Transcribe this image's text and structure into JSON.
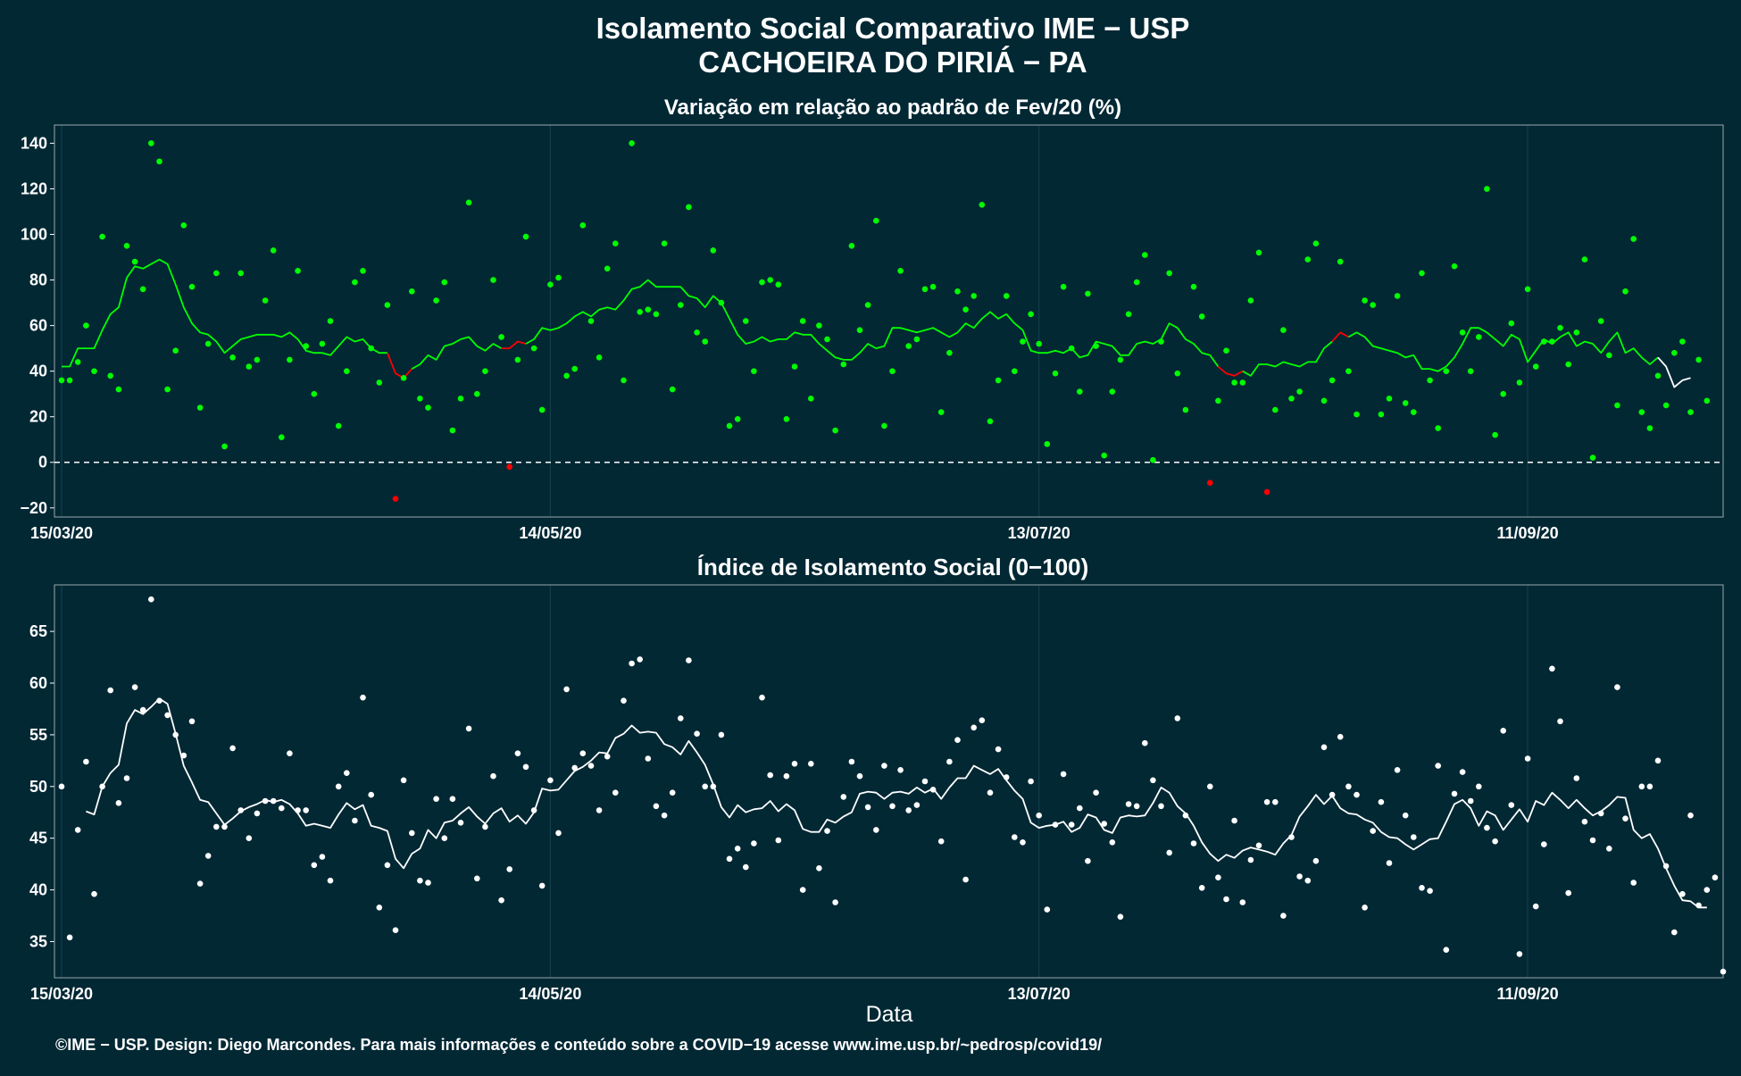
{
  "title_line1": "Isolamento Social Comparativo IME − USP",
  "title_line2": "CACHOEIRA DO PIRIÁ − PA",
  "xlabel": "Data",
  "credit": "©IME − USP. Design: Diego Marcondes. Para mais informações e conteúdo sobre a COVID−19 acesse www.ime.usp.br/~pedrosp/covid19/",
  "colors": {
    "background": "#022834",
    "positive": "#00ff00",
    "negative": "#ff0000",
    "index": "#ffffff",
    "grid": "#17424f"
  },
  "chart_data": [
    {
      "type": "scatter",
      "title": "Variação em relação ao padrão de Fev/20 (%)",
      "x_start": "15/03/20",
      "x_end": "05/10/20",
      "x_ticks": [
        "15/03/20",
        "14/05/20",
        "13/07/20",
        "11/09/20"
      ],
      "y_ticks": [
        -20,
        0,
        20,
        40,
        60,
        80,
        100,
        120,
        140
      ],
      "ylim": [
        -24,
        148
      ],
      "reference_line": 0,
      "points": [
        36,
        36,
        44,
        60,
        40,
        99,
        38,
        32,
        95,
        88,
        76,
        140,
        132,
        32,
        49,
        104,
        77,
        24,
        52,
        83,
        7,
        46,
        83,
        42,
        45,
        71,
        93,
        11,
        45,
        84,
        51,
        30,
        52,
        62,
        16,
        40,
        79,
        84,
        50,
        35,
        69,
        -16,
        37,
        75,
        28,
        24,
        71,
        79,
        14,
        28,
        114,
        30,
        40,
        80,
        55,
        -2,
        45,
        99,
        50,
        23,
        78,
        81,
        38,
        41,
        104,
        62,
        46,
        85,
        96,
        36,
        140,
        66,
        67,
        65,
        96,
        32,
        69,
        112,
        57,
        53,
        93,
        70,
        16,
        19,
        62,
        40,
        79,
        80,
        78,
        19,
        42,
        62,
        28,
        60,
        54,
        14,
        43,
        95,
        58,
        69,
        106,
        16,
        40,
        84,
        51,
        54,
        76,
        77,
        22,
        48,
        75,
        67,
        73,
        113,
        18,
        36,
        73,
        40,
        53,
        65,
        52,
        8,
        39,
        77,
        50,
        31,
        74,
        51,
        3,
        31,
        45,
        65,
        79,
        91,
        1,
        53,
        83,
        39,
        23,
        77,
        64,
        -9,
        27,
        49,
        35,
        35,
        71,
        92,
        -13,
        23,
        58,
        28,
        31,
        89,
        96,
        27,
        36,
        88,
        40,
        21,
        71,
        69,
        21,
        28,
        73,
        26,
        22,
        83,
        36,
        15,
        40,
        86,
        57,
        40,
        55,
        120,
        12,
        30,
        61,
        35,
        76,
        42,
        53,
        53,
        59,
        43,
        57,
        89,
        2,
        62,
        47,
        25,
        75,
        98,
        22,
        15,
        38,
        25,
        48,
        53,
        22,
        45,
        27
      ],
      "moving_avg": [
        42,
        42,
        50,
        50,
        50,
        58,
        65,
        68,
        81,
        86,
        85,
        87,
        89,
        87,
        78,
        68,
        61,
        57,
        56,
        53,
        48,
        51,
        54,
        55,
        56,
        56,
        56,
        55,
        57,
        54,
        49,
        48,
        48,
        47,
        51,
        55,
        53,
        54,
        50,
        48,
        48,
        39,
        37,
        41,
        43,
        47,
        45,
        51,
        52,
        54,
        55,
        51,
        49,
        52,
        50,
        50,
        53,
        52,
        54,
        59,
        58,
        59,
        61,
        64,
        66,
        64,
        67,
        68,
        67,
        71,
        76,
        77,
        80,
        77,
        77,
        77,
        77,
        73,
        72,
        68,
        73,
        70,
        63,
        56,
        52,
        53,
        55,
        53,
        54,
        54,
        57,
        56,
        56,
        52,
        49,
        46,
        45,
        45,
        48,
        52,
        50,
        51,
        59,
        59,
        58,
        57,
        58,
        59,
        57,
        55,
        57,
        61,
        59,
        63,
        66,
        63,
        65,
        61,
        58,
        49,
        48,
        48,
        49,
        48,
        50,
        46,
        47,
        53,
        52,
        51,
        47,
        47,
        52,
        53,
        52,
        54,
        61,
        59,
        54,
        52,
        48,
        47,
        42,
        39,
        38,
        40,
        38,
        43,
        43,
        42,
        44,
        43,
        42,
        44,
        44,
        50,
        53,
        57,
        55,
        57,
        55,
        51,
        50,
        49,
        48,
        46,
        47,
        41,
        41,
        40,
        42,
        46,
        52,
        59,
        59,
        57,
        54,
        51,
        56,
        54,
        44,
        49,
        54,
        52,
        55,
        57,
        51,
        53,
        52,
        48,
        53,
        57,
        48,
        50,
        46,
        43,
        46,
        42,
        33,
        36,
        37
      ],
      "moving_avg_color_runs": [
        [
          0,
          40,
          "#00ff00"
        ],
        [
          40,
          43,
          "#ff0000"
        ],
        [
          43,
          54,
          "#00ff00"
        ],
        [
          54,
          57,
          "#ff0000"
        ],
        [
          57,
          142,
          "#00ff00"
        ],
        [
          142,
          145,
          "#ff0000"
        ],
        [
          145,
          156,
          "#00ff00"
        ],
        [
          156,
          158,
          "#ff0000"
        ],
        [
          158,
          196,
          "#00ff00"
        ],
        [
          196,
          201,
          "#ffffff"
        ]
      ]
    },
    {
      "type": "scatter",
      "title": "Índice de Isolamento Social (0−100)",
      "x_start": "15/03/20",
      "x_end": "05/10/20",
      "x_ticks": [
        "15/03/20",
        "14/05/20",
        "13/07/20",
        "11/09/20"
      ],
      "y_ticks": [
        35,
        40,
        45,
        50,
        55,
        60,
        65
      ],
      "ylim": [
        31.5,
        69.5
      ],
      "points": [
        50,
        35.4,
        45.8,
        52.4,
        39.6,
        50,
        59.3,
        48.4,
        50.8,
        59.6,
        57.4,
        68.1,
        58.3,
        56.9,
        55,
        53,
        56.3,
        40.6,
        43.3,
        46.1,
        46.1,
        53.7,
        47.7,
        45,
        47.4,
        48.6,
        48.6,
        47.9,
        53.2,
        47.7,
        47.7,
        42.4,
        43.2,
        40.9,
        50,
        51.3,
        46.7,
        58.6,
        49.2,
        38.3,
        42.4,
        36.1,
        50.6,
        45.5,
        40.9,
        40.7,
        48.8,
        45,
        48.8,
        46.5,
        55.6,
        41.1,
        46.1,
        51,
        39,
        42,
        53.2,
        51.9,
        47.7,
        40.4,
        50.6,
        45.5,
        59.4,
        51.8,
        53.2,
        52,
        47.7,
        52.9,
        49.4,
        58.3,
        61.9,
        62.3,
        52.7,
        48.1,
        47.2,
        49.4,
        56.6,
        62.2,
        55.1,
        50,
        50,
        55,
        43,
        44,
        42.2,
        44.5,
        58.6,
        51.1,
        44.8,
        51,
        52.2,
        40,
        52.2,
        42.1,
        45.7,
        38.8,
        49,
        52.4,
        51,
        48,
        45.8,
        52,
        48.1,
        51.6,
        47.7,
        48.2,
        50.5,
        49.7,
        44.7,
        52.4,
        54.5,
        41,
        55.7,
        56.4,
        49.4,
        53.6,
        50.9,
        45.1,
        44.6,
        50.5,
        47.2,
        38.1,
        46.3,
        51.2,
        46.3,
        47.9,
        42.8,
        49.4,
        46.4,
        44.6,
        37.4,
        48.3,
        48.1,
        54.2,
        50.6,
        48.1,
        43.6,
        56.6,
        47.2,
        44.5,
        40.2,
        50,
        41.2,
        39.1,
        46.7,
        38.8,
        42.9,
        44.3,
        48.5,
        48.5,
        37.5,
        45.1,
        41.3,
        40.9,
        42.8,
        53.8,
        49.2,
        54.8,
        50,
        49.2,
        38.3,
        45.7,
        48.5,
        42.6,
        51.6,
        47.2,
        45.1,
        40.2,
        39.9,
        52,
        34.2,
        49.3,
        51.4,
        48.6,
        50,
        46,
        44.7,
        55.4,
        48.2,
        33.8,
        52.7,
        38.4,
        44.4,
        61.4,
        56.3,
        39.7,
        50.8,
        46.6,
        44.8,
        47.4,
        44,
        59.6,
        46.9,
        40.7,
        50,
        50,
        52.5,
        42.3,
        35.9,
        39.6,
        47.2,
        38.5,
        40,
        41.2,
        32.1
      ],
      "moving_avg": [
        null,
        null,
        null,
        47.6,
        47.3,
        50,
        51.3,
        52.1,
        56.1,
        57.4,
        57,
        57.7,
        58.5,
        58,
        55.1,
        52,
        50.4,
        48.7,
        48.5,
        47.4,
        46.3,
        46.9,
        47.6,
        48,
        48.3,
        48.7,
        48.5,
        48.7,
        48.3,
        47.4,
        46.2,
        46.4,
        46.2,
        46,
        47.3,
        48.4,
        47.8,
        48.2,
        46.2,
        46,
        45.7,
        43,
        42.1,
        43.5,
        44,
        45.8,
        45,
        46.5,
        46.7,
        47.4,
        48,
        47.1,
        46.4,
        47.4,
        47.9,
        46.6,
        47.2,
        46.4,
        47.5,
        49.8,
        49.6,
        49.7,
        50.6,
        51.5,
        51.9,
        52.5,
        53.3,
        53.2,
        54.7,
        55.1,
        55.9,
        55.2,
        55.3,
        55.2,
        54.1,
        53.8,
        53.1,
        54.4,
        53.3,
        52.1,
        50.2,
        48,
        47,
        48.2,
        47.5,
        47.8,
        47.9,
        48.6,
        47.6,
        48.3,
        47.7,
        45.9,
        45.6,
        45.6,
        46.8,
        46.5,
        47.1,
        47.5,
        49.3,
        49.5,
        49.4,
        48.8,
        49.4,
        49.5,
        49.3,
        49.9,
        49.4,
        49.8,
        48.8,
        49.9,
        50.8,
        50.8,
        52,
        51.6,
        51.2,
        51.7,
        50.6,
        49.6,
        48.8,
        46.5,
        46,
        46.2,
        46.3,
        46.6,
        45.6,
        46,
        47.3,
        47,
        45.8,
        45.5,
        47,
        47.2,
        47.1,
        47.2,
        48.4,
        49.9,
        49.4,
        48.1,
        47.4,
        46.2,
        44.6,
        43.5,
        42.8,
        43.4,
        43.1,
        43.8,
        44.1,
        43.9,
        43.7,
        43.4,
        44.5,
        45.3,
        47.1,
        48.1,
        49.2,
        48.3,
        49.1,
        47.9,
        47.4,
        47.3,
        46.8,
        46.5,
        45.6,
        45.1,
        45,
        44.4,
        43.9,
        44.4,
        44.9,
        45,
        46.6,
        48.3,
        48.7,
        47.9,
        46.2,
        47.6,
        47.2,
        45.8,
        46.8,
        47.8,
        46.6,
        48.6,
        48.2,
        49.4,
        48.7,
        47.9,
        48.7,
        47.9,
        47.2,
        47.6,
        48.2,
        49,
        48.9,
        45.8,
        45,
        45.4,
        44,
        42.1,
        40.4,
        39,
        38.9,
        38.3,
        38.3
      ]
    }
  ]
}
